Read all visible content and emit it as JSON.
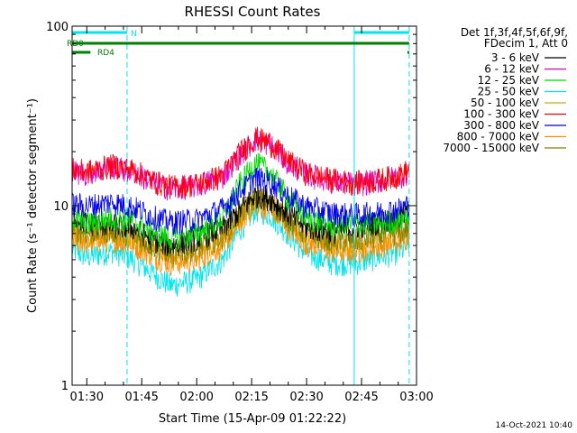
{
  "chart_data": {
    "type": "line",
    "title": "RHESSI Count Rates",
    "xlabel": "Start Time (15-Apr-09 01:22:22)",
    "ylabel": "Count Rate (s⁻¹ detector segment⁻¹)",
    "yscale": "log",
    "ylim": [
      1,
      100
    ],
    "xlim_minutes": [
      86,
      180
    ],
    "x_ticks": [
      {
        "t": 90,
        "label": "01:30"
      },
      {
        "t": 105,
        "label": "01:45"
      },
      {
        "t": 120,
        "label": "02:00"
      },
      {
        "t": 135,
        "label": "02:15"
      },
      {
        "t": 150,
        "label": "02:30"
      },
      {
        "t": 165,
        "label": "02:45"
      },
      {
        "t": 180,
        "label": "03:00"
      }
    ],
    "y_ticks": [
      {
        "v": 1,
        "label": "1"
      },
      {
        "v": 10,
        "label": "10"
      },
      {
        "v": 100,
        "label": "100"
      }
    ],
    "legend_header": [
      "Det 1f,3f,4f,5f,6f,9f,",
      "FDecim 1, Att 0"
    ],
    "series": [
      {
        "name": "3 - 6 keV",
        "color": "#000000",
        "values": [
          {
            "t": 86,
            "v": 9.0
          },
          {
            "t": 90,
            "v": 8.0
          },
          {
            "t": 97,
            "v": 7.8
          },
          {
            "t": 103,
            "v": 7.5
          },
          {
            "t": 108,
            "v": 6.5
          },
          {
            "t": 113,
            "v": 6.0
          },
          {
            "t": 120,
            "v": 6.6
          },
          {
            "t": 127,
            "v": 7.5
          },
          {
            "t": 132,
            "v": 9.5
          },
          {
            "t": 136,
            "v": 11.5
          },
          {
            "t": 140,
            "v": 11.0
          },
          {
            "t": 145,
            "v": 9.0
          },
          {
            "t": 150,
            "v": 7.6
          },
          {
            "t": 157,
            "v": 7.2
          },
          {
            "t": 163,
            "v": 7.6
          },
          {
            "t": 170,
            "v": 8.2
          },
          {
            "t": 176,
            "v": 8.6
          },
          {
            "t": 178,
            "v": 9.5
          }
        ]
      },
      {
        "name": "6 - 12 keV",
        "color": "#e000e0",
        "values": [
          {
            "t": 86,
            "v": 15.5
          },
          {
            "t": 90,
            "v": 15.2
          },
          {
            "t": 97,
            "v": 16.5
          },
          {
            "t": 103,
            "v": 15.5
          },
          {
            "t": 108,
            "v": 13.5
          },
          {
            "t": 113,
            "v": 12.5
          },
          {
            "t": 120,
            "v": 13.0
          },
          {
            "t": 127,
            "v": 14.5
          },
          {
            "t": 132,
            "v": 19.5
          },
          {
            "t": 136,
            "v": 23.5
          },
          {
            "t": 140,
            "v": 22.0
          },
          {
            "t": 145,
            "v": 17.5
          },
          {
            "t": 150,
            "v": 15.0
          },
          {
            "t": 157,
            "v": 13.8
          },
          {
            "t": 163,
            "v": 13.2
          },
          {
            "t": 170,
            "v": 13.8
          },
          {
            "t": 176,
            "v": 14.8
          },
          {
            "t": 178,
            "v": 15.5
          }
        ]
      },
      {
        "name": "12 - 25 keV",
        "color": "#00dd00",
        "values": [
          {
            "t": 86,
            "v": 8.5
          },
          {
            "t": 90,
            "v": 8.0
          },
          {
            "t": 97,
            "v": 8.6
          },
          {
            "t": 103,
            "v": 8.2
          },
          {
            "t": 108,
            "v": 7.2
          },
          {
            "t": 113,
            "v": 6.6
          },
          {
            "t": 120,
            "v": 7.0
          },
          {
            "t": 127,
            "v": 8.5
          },
          {
            "t": 132,
            "v": 13.5
          },
          {
            "t": 136,
            "v": 17.5
          },
          {
            "t": 140,
            "v": 15.5
          },
          {
            "t": 145,
            "v": 11.0
          },
          {
            "t": 150,
            "v": 8.6
          },
          {
            "t": 157,
            "v": 7.8
          },
          {
            "t": 163,
            "v": 8.0
          },
          {
            "t": 170,
            "v": 8.0
          },
          {
            "t": 176,
            "v": 8.4
          },
          {
            "t": 178,
            "v": 9.0
          }
        ]
      },
      {
        "name": "25 - 50 keV",
        "color": "#00e5ee",
        "values": [
          {
            "t": 86,
            "v": 5.8
          },
          {
            "t": 90,
            "v": 5.2
          },
          {
            "t": 97,
            "v": 5.6
          },
          {
            "t": 103,
            "v": 5.0
          },
          {
            "t": 108,
            "v": 4.2
          },
          {
            "t": 113,
            "v": 3.6
          },
          {
            "t": 120,
            "v": 3.9
          },
          {
            "t": 127,
            "v": 5.0
          },
          {
            "t": 132,
            "v": 7.5
          },
          {
            "t": 136,
            "v": 9.5
          },
          {
            "t": 140,
            "v": 9.0
          },
          {
            "t": 145,
            "v": 7.0
          },
          {
            "t": 150,
            "v": 5.4
          },
          {
            "t": 157,
            "v": 4.8
          },
          {
            "t": 163,
            "v": 4.8
          },
          {
            "t": 170,
            "v": 5.2
          },
          {
            "t": 176,
            "v": 5.6
          },
          {
            "t": 178,
            "v": 6.2
          }
        ]
      },
      {
        "name": "50 - 100 keV",
        "color": "#e0a000",
        "values": [
          {
            "t": 86,
            "v": 7.4
          },
          {
            "t": 90,
            "v": 6.8
          },
          {
            "t": 97,
            "v": 7.0
          },
          {
            "t": 103,
            "v": 6.6
          },
          {
            "t": 108,
            "v": 5.8
          },
          {
            "t": 113,
            "v": 5.3
          },
          {
            "t": 120,
            "v": 5.5
          },
          {
            "t": 127,
            "v": 6.5
          },
          {
            "t": 132,
            "v": 8.8
          },
          {
            "t": 136,
            "v": 10.8
          },
          {
            "t": 140,
            "v": 10.3
          },
          {
            "t": 145,
            "v": 8.2
          },
          {
            "t": 150,
            "v": 6.8
          },
          {
            "t": 157,
            "v": 6.1
          },
          {
            "t": 163,
            "v": 6.1
          },
          {
            "t": 170,
            "v": 6.5
          },
          {
            "t": 176,
            "v": 6.9
          },
          {
            "t": 178,
            "v": 7.4
          }
        ]
      },
      {
        "name": "100 - 300 keV",
        "color": "#ff0000",
        "values": [
          {
            "t": 86,
            "v": 16.0
          },
          {
            "t": 90,
            "v": 15.5
          },
          {
            "t": 97,
            "v": 16.8
          },
          {
            "t": 103,
            "v": 15.8
          },
          {
            "t": 108,
            "v": 13.8
          },
          {
            "t": 113,
            "v": 12.8
          },
          {
            "t": 120,
            "v": 13.2
          },
          {
            "t": 127,
            "v": 14.8
          },
          {
            "t": 132,
            "v": 20.0
          },
          {
            "t": 136,
            "v": 24.0
          },
          {
            "t": 140,
            "v": 22.5
          },
          {
            "t": 145,
            "v": 17.8
          },
          {
            "t": 150,
            "v": 15.2
          },
          {
            "t": 157,
            "v": 14.0
          },
          {
            "t": 163,
            "v": 13.5
          },
          {
            "t": 170,
            "v": 14.0
          },
          {
            "t": 176,
            "v": 15.0
          },
          {
            "t": 178,
            "v": 16.0
          }
        ]
      },
      {
        "name": "300 - 800 keV",
        "color": "#0000ee",
        "values": [
          {
            "t": 86,
            "v": 10.2
          },
          {
            "t": 90,
            "v": 10.0
          },
          {
            "t": 97,
            "v": 10.5
          },
          {
            "t": 103,
            "v": 9.8
          },
          {
            "t": 108,
            "v": 8.7
          },
          {
            "t": 113,
            "v": 8.1
          },
          {
            "t": 120,
            "v": 8.4
          },
          {
            "t": 127,
            "v": 9.6
          },
          {
            "t": 132,
            "v": 12.2
          },
          {
            "t": 136,
            "v": 14.3
          },
          {
            "t": 140,
            "v": 13.7
          },
          {
            "t": 145,
            "v": 11.4
          },
          {
            "t": 150,
            "v": 9.9
          },
          {
            "t": 157,
            "v": 9.1
          },
          {
            "t": 163,
            "v": 8.9
          },
          {
            "t": 170,
            "v": 9.2
          },
          {
            "t": 176,
            "v": 9.7
          },
          {
            "t": 178,
            "v": 10.3
          }
        ]
      },
      {
        "name": "800 - 7000 keV",
        "color": "#ff8c00",
        "values": [
          {
            "t": 86,
            "v": 6.6
          },
          {
            "t": 90,
            "v": 6.2
          },
          {
            "t": 97,
            "v": 6.5
          },
          {
            "t": 103,
            "v": 6.1
          },
          {
            "t": 108,
            "v": 5.3
          },
          {
            "t": 113,
            "v": 4.8
          },
          {
            "t": 120,
            "v": 5.0
          },
          {
            "t": 127,
            "v": 6.0
          },
          {
            "t": 132,
            "v": 8.2
          },
          {
            "t": 136,
            "v": 10.2
          },
          {
            "t": 140,
            "v": 9.7
          },
          {
            "t": 145,
            "v": 7.7
          },
          {
            "t": 150,
            "v": 6.2
          },
          {
            "t": 157,
            "v": 5.6
          },
          {
            "t": 163,
            "v": 5.6
          },
          {
            "t": 170,
            "v": 6.0
          },
          {
            "t": 176,
            "v": 6.4
          },
          {
            "t": 178,
            "v": 6.9
          }
        ]
      },
      {
        "name": "7000 - 15000 keV",
        "color": "#808000",
        "values": [
          {
            "t": 86,
            "v": 7.6
          },
          {
            "t": 90,
            "v": 7.1
          },
          {
            "t": 97,
            "v": 7.3
          },
          {
            "t": 103,
            "v": 6.9
          },
          {
            "t": 108,
            "v": 6.0
          },
          {
            "t": 113,
            "v": 5.5
          },
          {
            "t": 120,
            "v": 5.8
          },
          {
            "t": 127,
            "v": 6.8
          },
          {
            "t": 132,
            "v": 9.2
          },
          {
            "t": 136,
            "v": 11.2
          },
          {
            "t": 140,
            "v": 10.6
          },
          {
            "t": 145,
            "v": 8.5
          },
          {
            "t": 150,
            "v": 7.0
          },
          {
            "t": 157,
            "v": 6.4
          },
          {
            "t": 163,
            "v": 6.4
          },
          {
            "t": 170,
            "v": 6.8
          },
          {
            "t": 176,
            "v": 7.2
          },
          {
            "t": 178,
            "v": 7.7
          }
        ]
      }
    ],
    "flag_bars": [
      {
        "label": "N",
        "color": "#00e5ee",
        "segments": [
          [
            86,
            101
          ],
          [
            163,
            178
          ]
        ]
      },
      {
        "label": "RD0",
        "color": "#008000",
        "segments": [
          [
            86,
            178
          ]
        ]
      },
      {
        "label": "RD4",
        "color": "#008000",
        "segments": [
          [
            86,
            91
          ],
          [
            177.5,
            178
          ]
        ]
      }
    ],
    "vertical_markers": [
      {
        "t": 86,
        "style": "solid",
        "color": "#00e5ee"
      },
      {
        "t": 101,
        "style": "dashed",
        "color": "#00e5ee"
      },
      {
        "t": 163,
        "style": "solid",
        "color": "#00e5ee"
      },
      {
        "t": 178,
        "style": "dashed",
        "color": "#00e5ee"
      }
    ],
    "grid": false,
    "legend_position": "right",
    "footer_date": "14-Oct-2021 10:40"
  }
}
